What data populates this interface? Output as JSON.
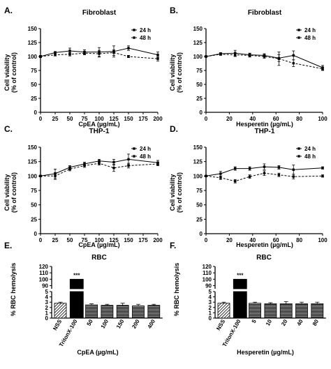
{
  "chart_data": [
    {
      "panel": "A.",
      "type": "line",
      "title": "Fibroblast",
      "xlabel": "CpEA (µg/mL)",
      "ylabel": "Cell viability (% of control)",
      "xlim": [
        0,
        200
      ],
      "ylim": [
        0,
        150
      ],
      "xticks": [
        0,
        25,
        50,
        75,
        100,
        125,
        150,
        175,
        200
      ],
      "yticks": [
        0,
        25,
        50,
        75,
        100,
        125,
        150
      ],
      "x": [
        0,
        25,
        50,
        75,
        100,
        125,
        150,
        175,
        200
      ],
      "series": [
        {
          "name": "24 h",
          "style": "solid",
          "y": [
            100,
            107,
            110,
            108,
            108,
            109,
            115,
            null,
            103
          ],
          "err": [
            2,
            2,
            5,
            4,
            8,
            10,
            4,
            null,
            5
          ]
        },
        {
          "name": "48 h",
          "style": "dashed",
          "y": [
            100,
            103,
            104,
            106,
            105,
            107,
            100,
            null,
            96
          ],
          "err": [
            1,
            2,
            3,
            3,
            6,
            5,
            2,
            null,
            4
          ]
        }
      ]
    },
    {
      "panel": "B.",
      "type": "line",
      "title": "Fibroblast",
      "xlabel": "Hesperetin (µg/mL)",
      "ylabel": "Cell viability (% of control)",
      "xlim": [
        0,
        100
      ],
      "ylim": [
        0,
        150
      ],
      "xticks": [
        0,
        20,
        40,
        60,
        80,
        100
      ],
      "yticks": [
        0,
        25,
        50,
        75,
        100,
        125,
        150
      ],
      "x": [
        0,
        12.5,
        25,
        37.5,
        50,
        62.5,
        75,
        100
      ],
      "series": [
        {
          "name": "24 h",
          "style": "solid",
          "y": [
            100,
            105,
            106,
            103,
            102,
            97,
            102,
            80
          ],
          "err": [
            1,
            2,
            5,
            3,
            3,
            6,
            8,
            4
          ]
        },
        {
          "name": "48 h",
          "style": "dashed",
          "y": [
            100,
            104,
            103,
            102,
            100,
            96,
            88,
            78
          ],
          "err": [
            1,
            2,
            3,
            3,
            3,
            12,
            6,
            3
          ]
        }
      ]
    },
    {
      "panel": "C.",
      "type": "line",
      "title": "THP-1",
      "xlabel": "CpEA (µg/mL)",
      "ylabel": "Cell viability (% of control)",
      "xlim": [
        0,
        200
      ],
      "ylim": [
        0,
        150
      ],
      "xticks": [
        0,
        25,
        50,
        75,
        100,
        125,
        150,
        175,
        200
      ],
      "yticks": [
        0,
        25,
        50,
        75,
        100,
        125,
        150
      ],
      "x": [
        0,
        25,
        50,
        75,
        100,
        125,
        150,
        200
      ],
      "series": [
        {
          "name": "24 h",
          "style": "solid",
          "y": [
            100,
            104,
            115,
            121,
            126,
            124,
            129,
            123
          ],
          "err": [
            1,
            8,
            3,
            3,
            3,
            5,
            9,
            4
          ]
        },
        {
          "name": "48 h",
          "style": "dashed",
          "y": [
            100,
            100,
            112,
            118,
            122,
            114,
            118,
            121
          ],
          "err": [
            1,
            6,
            3,
            3,
            3,
            6,
            4,
            3
          ]
        }
      ]
    },
    {
      "panel": "D.",
      "type": "line",
      "title": "THP-1",
      "xlabel": "Hesperetin (µg/mL)",
      "ylabel": "Cell viability (% of control)",
      "xlim": [
        0,
        100
      ],
      "ylim": [
        0,
        150
      ],
      "xticks": [
        0,
        20,
        40,
        60,
        80,
        100
      ],
      "yticks": [
        0,
        25,
        50,
        75,
        100,
        125,
        150
      ],
      "x": [
        0,
        12.5,
        25,
        37.5,
        50,
        62.5,
        75,
        100
      ],
      "series": [
        {
          "name": "24 h",
          "style": "solid",
          "y": [
            100,
            104,
            113,
            113,
            116,
            115,
            111,
            114
          ],
          "err": [
            1,
            4,
            3,
            3,
            5,
            3,
            8,
            2
          ]
        },
        {
          "name": "48 h",
          "style": "dashed",
          "y": [
            100,
            97,
            91,
            99,
            105,
            102,
            99,
            100
          ],
          "err": [
            1,
            3,
            3,
            3,
            4,
            3,
            4,
            2
          ]
        }
      ]
    },
    {
      "panel": "E.",
      "type": "bar",
      "title": "RBC",
      "xlabel": "CpEA (µg/mL)",
      "ylabel": "% RBC hemolysis",
      "categories": [
        "NSS",
        "TritonX-100",
        "50",
        "100",
        "150",
        "200",
        "400"
      ],
      "values": [
        2.8,
        100,
        2.5,
        2.4,
        2.4,
        2.3,
        2.4
      ],
      "err": [
        0.2,
        0,
        0.2,
        0.2,
        0.4,
        0.3,
        0.2
      ],
      "yticks_lower": [
        "0",
        "1",
        "2",
        "3",
        "4",
        "5"
      ],
      "yticks_upper": [
        "90",
        "100",
        "110",
        "120"
      ],
      "annotation": "***"
    },
    {
      "panel": "F.",
      "type": "bar",
      "title": "RBC",
      "xlabel": "Hesperetin (µg/mL)",
      "ylabel": "% RBC hemolysis",
      "categories": [
        "NSS",
        "TritonX-100",
        "5",
        "10",
        "20",
        "40",
        "80"
      ],
      "values": [
        2.8,
        100,
        2.8,
        2.7,
        2.7,
        2.7,
        2.7
      ],
      "err": [
        0.2,
        0,
        0.2,
        0.2,
        0.4,
        0.3,
        0.3
      ],
      "yticks_lower": [
        "0",
        "1",
        "2",
        "3",
        "4",
        "5"
      ],
      "yticks_upper": [
        "90",
        "100",
        "110",
        "120"
      ],
      "annotation": "***"
    }
  ]
}
